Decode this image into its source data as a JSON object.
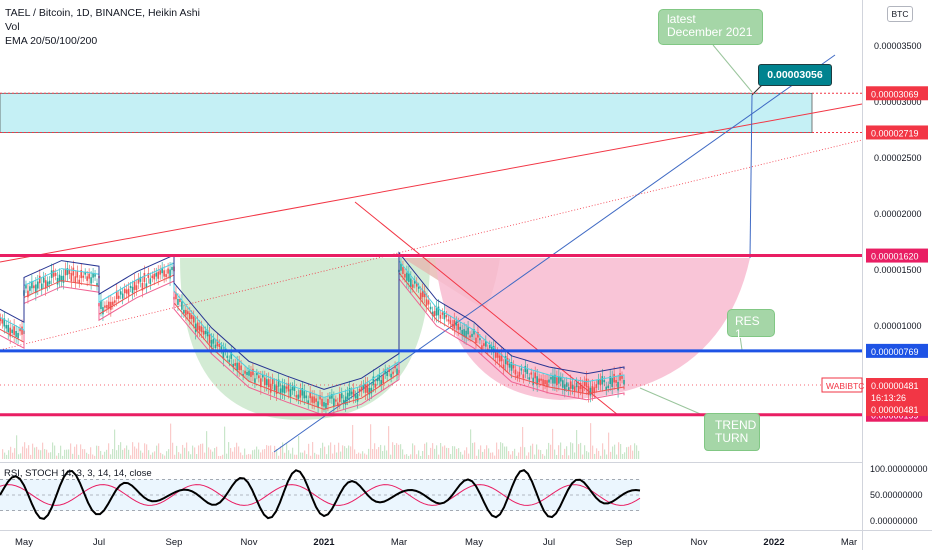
{
  "header": {
    "title": "TAEL / Bitcoin, 1D, BINANCE, Heikin Ashi",
    "vol": "Vol",
    "ema": "EMA 20/50/100/200"
  },
  "currency_badge": "BTC",
  "annotations": {
    "latest": [
      "latest",
      "December 2021"
    ],
    "target_price": "0.00003056",
    "res1": "RES 1",
    "trend_turn": [
      "TREND",
      "TURN"
    ]
  },
  "rsi_label": "RSI, STOCH 14, 3, 3, 14, 14, close",
  "colors": {
    "red_line": "#f23645",
    "blue_line": "#1e53e5",
    "pink_line": "#e91e63",
    "cyan_zone": "#b2ebf2",
    "green_cup": "#c8e6c9",
    "pink_cup": "#f8bbd0",
    "trend_blue": "#3f6ac4",
    "rsi_black": "#000000",
    "rsi_red": "#e91e63"
  },
  "chart_data": [
    {
      "type": "line",
      "title": "TAEL / Bitcoin, 1D, BINANCE, Heikin Ashi",
      "x_ticks": [
        "May",
        "Jul",
        "Sep",
        "Nov",
        "2021",
        "Mar",
        "May",
        "Jul",
        "Sep",
        "Nov",
        "2022",
        "Mar"
      ],
      "y_ticks": [
        "0.00003500",
        "0.00003000",
        "0.00002500",
        "0.00002000",
        "0.00001500",
        "0.00001000"
      ],
      "ylim": [
        0,
        3.75e-05
      ],
      "horizontal_levels": [
        {
          "value": 3.069e-05,
          "label": "0.00003069",
          "color": "#f23645"
        },
        {
          "value": 2.719e-05,
          "label": "0.00002719",
          "color": "#f23645"
        },
        {
          "value": 1.62e-05,
          "label": "0.00001620",
          "color": "#e91e63"
        },
        {
          "value": 7.69e-06,
          "label": "0.00000769",
          "color": "#1e53e5"
        },
        {
          "value": 1.99e-06,
          "label": "0.00000199",
          "color": "#e91e63"
        }
      ],
      "last_price": {
        "symbol": "WABIBTC",
        "price": "0.00000481",
        "countdown": "16:13:26",
        "price2": "0.00000481"
      },
      "price_series": [
        {
          "x": "Apr 2020",
          "y": 1.08e-05
        },
        {
          "x": "May 2020",
          "y": 9e-06
        },
        {
          "x": "May 2020",
          "y": 1.3e-05
        },
        {
          "x": "Jun 2020",
          "y": 1.45e-05
        },
        {
          "x": "Jul 2020",
          "y": 1.4e-05
        },
        {
          "x": "Jul 2020",
          "y": 1.15e-05
        },
        {
          "x": "Aug 2020",
          "y": 1.35e-05
        },
        {
          "x": "Sep 2020",
          "y": 1.5e-05
        },
        {
          "x": "Sep 2020",
          "y": 1.25e-05
        },
        {
          "x": "Oct 2020",
          "y": 8.5e-06
        },
        {
          "x": "Nov 2020",
          "y": 5.5e-06
        },
        {
          "x": "Dec 2020",
          "y": 4.2e-06
        },
        {
          "x": "Jan 2021",
          "y": 3e-06
        },
        {
          "x": "Feb 2021",
          "y": 4e-06
        },
        {
          "x": "Mar 2021",
          "y": 6.2e-06
        },
        {
          "x": "Mar 2021",
          "y": 1.52e-05
        },
        {
          "x": "Apr 2021",
          "y": 1.1e-05
        },
        {
          "x": "May 2021",
          "y": 9e-06
        },
        {
          "x": "Jun 2021",
          "y": 6e-06
        },
        {
          "x": "Jul 2021",
          "y": 5e-06
        },
        {
          "x": "Aug 2021",
          "y": 4.4e-06
        },
        {
          "x": "Sep 2021",
          "y": 5e-06
        },
        {
          "x": "Sep 2021",
          "y": 4.8e-06
        }
      ]
    },
    {
      "type": "line",
      "title": "RSI, STOCH 14, 3, 3, 14, 14, close",
      "y_ticks": [
        "100.00000000",
        "50.00000000",
        "0.00000000"
      ],
      "ylim": [
        0,
        100
      ]
    }
  ]
}
